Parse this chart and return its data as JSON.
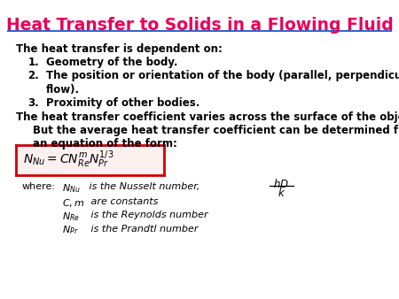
{
  "title": "Heat Transfer to Solids in a Flowing Fluid",
  "title_color": "#E8005A",
  "title_fontsize": 13.5,
  "bg_color": "#FFFFFF",
  "line_color": "#3366CC",
  "body_text_color": "#000000",
  "body_fontsize": 8.5,
  "italic_fontsize": 8.0,
  "box_color": "#CC0000",
  "box_facecolor": "#FFF0F0",
  "paragraph1": "The heat transfer is dependent on:",
  "list_nums": [
    "1.",
    "2.",
    "3."
  ],
  "list_item1": "Geometry of the body.",
  "list_item2_line1": "The position or orientation of the body (parallel, perpendicular to",
  "list_item2_line2": "flow).",
  "list_item3": "Proximity of other bodies.",
  "paragraph2_line1": "The heat transfer coefficient varies across the surface of the object.",
  "paragraph2_line2": "But the average heat transfer coefficient can be determined from",
  "paragraph2_line3": "an equation of the form:",
  "where_text": "where:",
  "nusselt_text": " is the Nusselt number,",
  "constants_text": " are constants",
  "reynolds_text": " is the Reynolds number",
  "prandtl_text": " is the Prandtl number"
}
